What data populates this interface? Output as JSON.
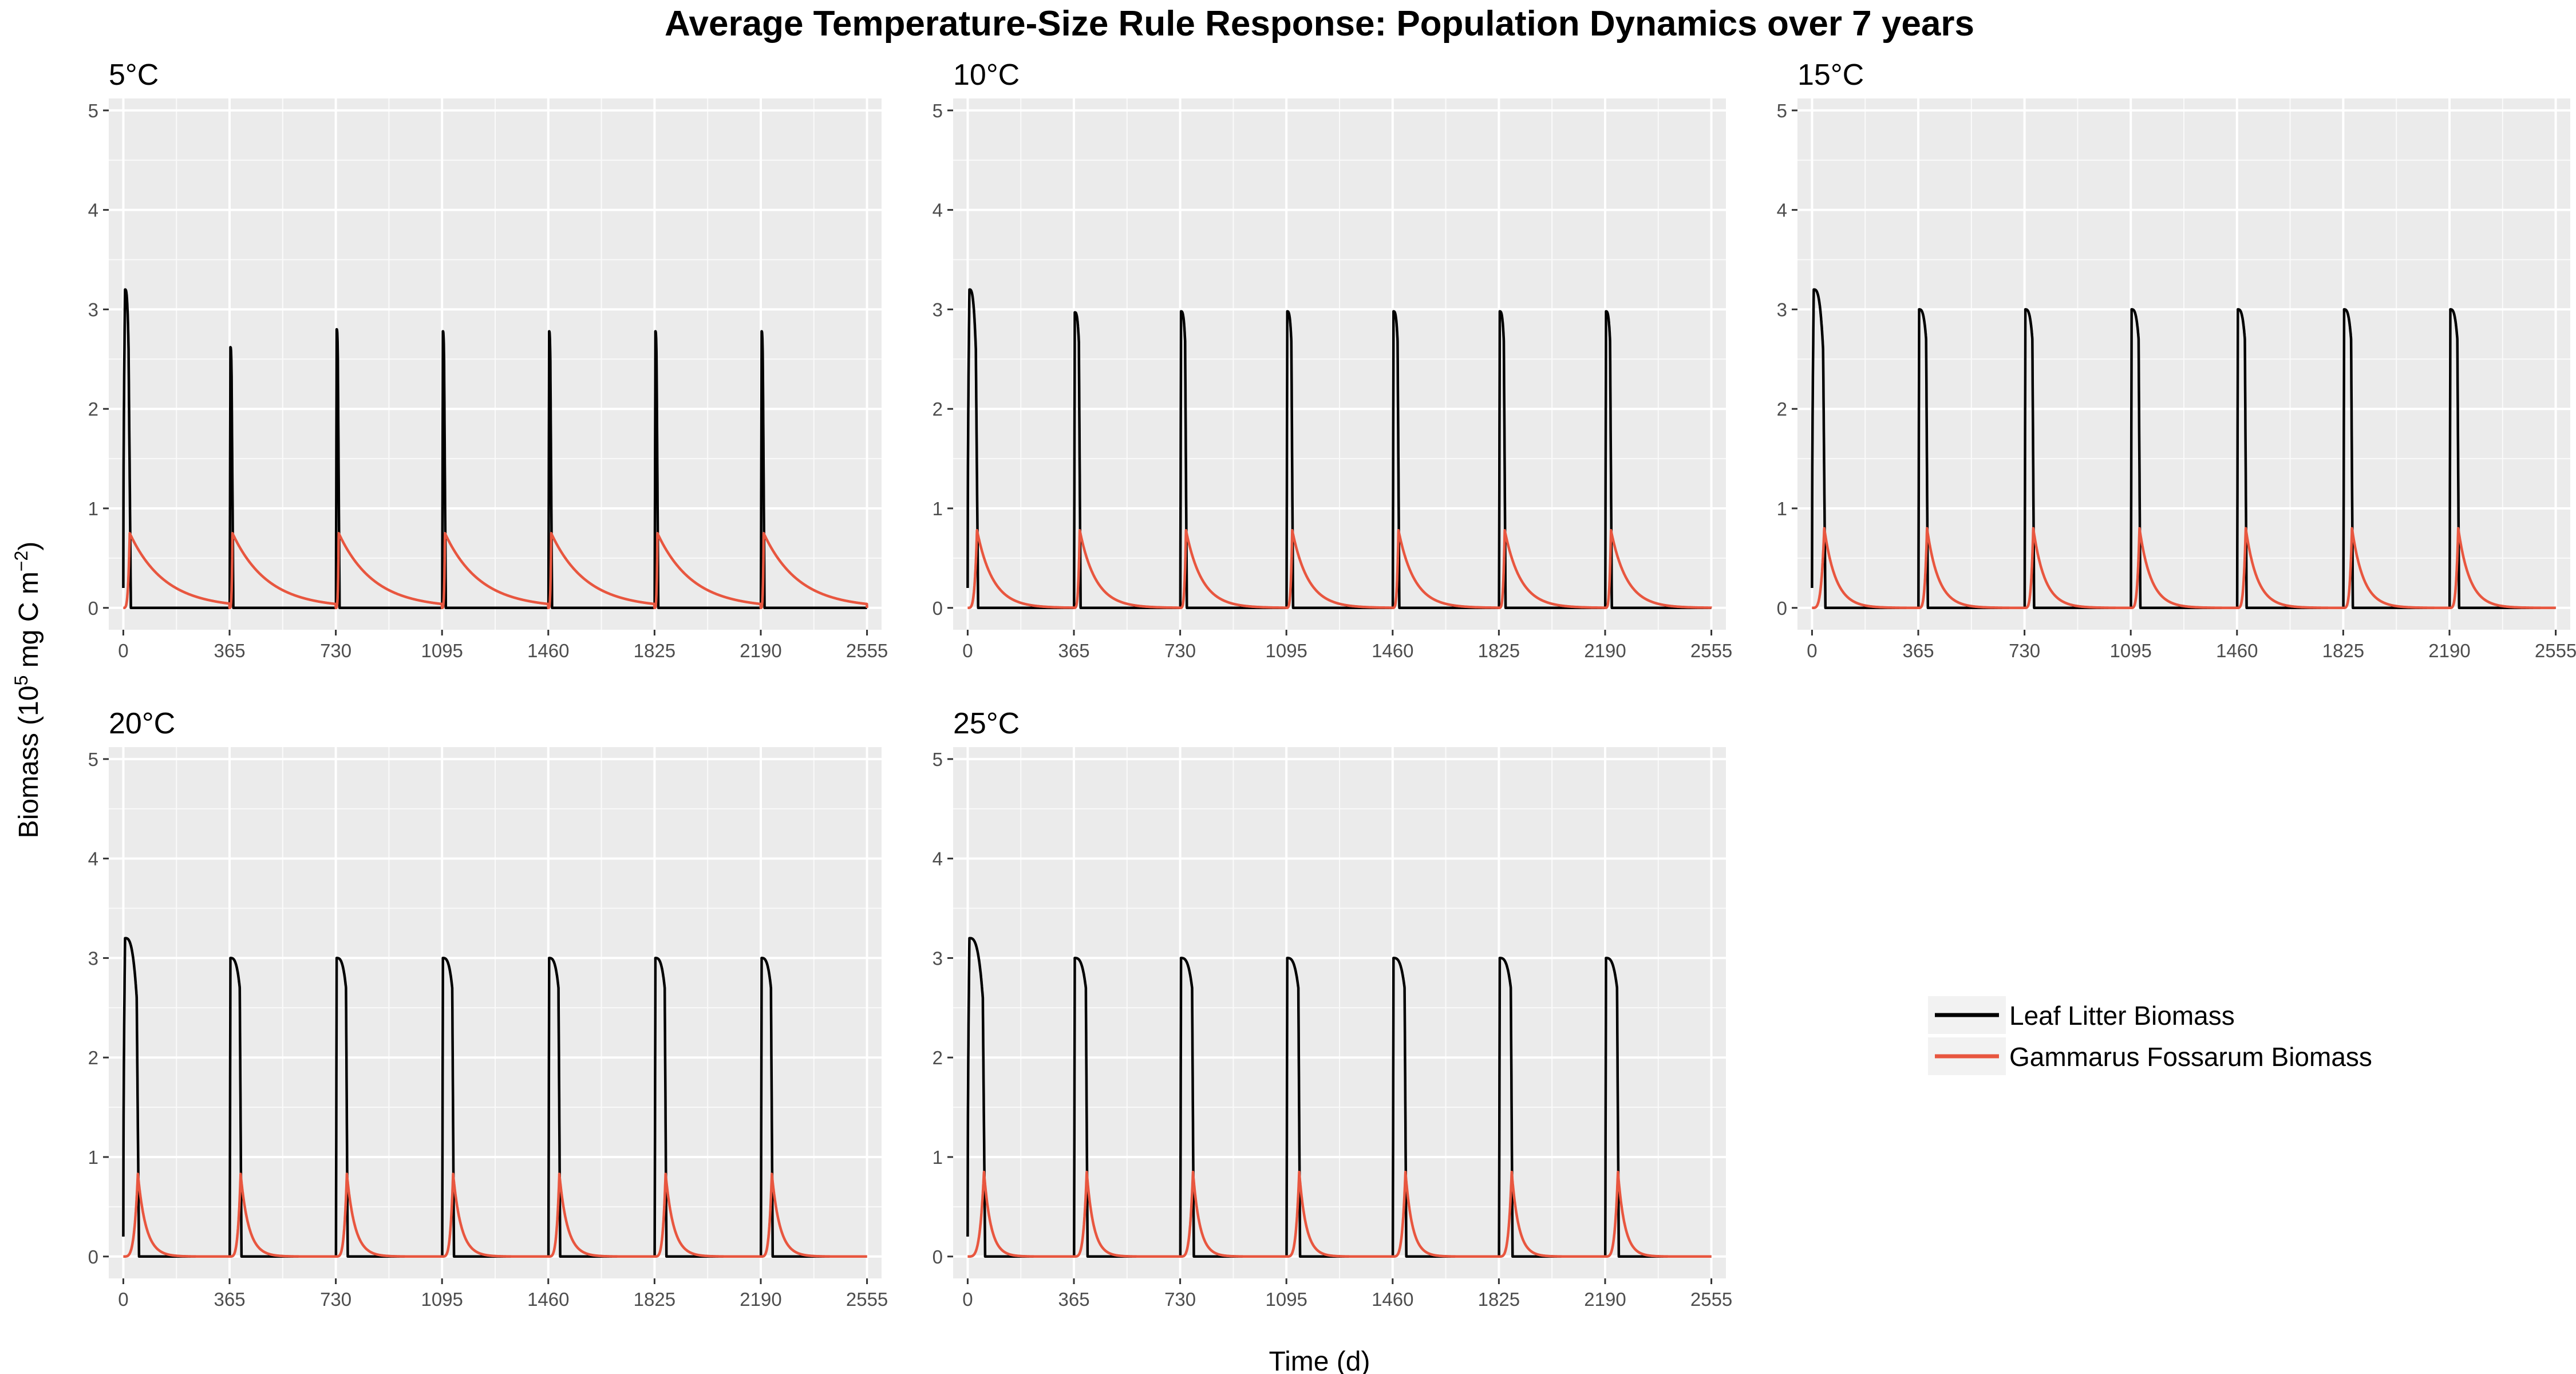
{
  "chart_data": {
    "type": "line",
    "title": "Average Temperature-Size Rule Response: Population Dynamics over 7 years",
    "xlabel": "Time (d)",
    "ylabel": {
      "main": "Biomass (10",
      "exp1": "5",
      "mid": " mg C m",
      "exp2": "−2",
      "end": ")"
    },
    "xlim": [
      -50,
      2605
    ],
    "ylim": [
      -0.22,
      5.12
    ],
    "x_ticks": [
      0,
      365,
      730,
      1095,
      1460,
      1825,
      2190,
      2555
    ],
    "x_tick_labels": [
      "0",
      "365",
      "730",
      "1095",
      "1460",
      "1825",
      "2190",
      "2555"
    ],
    "y_ticks": [
      0,
      1,
      2,
      3,
      4,
      5
    ],
    "y_tick_labels": [
      "0",
      "1",
      "2",
      "3",
      "4",
      "5"
    ],
    "grid": true,
    "legend_placement": "right",
    "legend": [
      {
        "label": "Leaf Litter Biomass",
        "color": "#000000"
      },
      {
        "label": "Gammarus Fossarum Biomass",
        "color": "#e8563f"
      }
    ],
    "colors": {
      "leaf": "#000000",
      "gammarus": "#e8563f",
      "panel_bg": "#ebebeb",
      "grid": "#ffffff"
    },
    "panels": [
      {
        "label": "5°C",
        "leaf_first_peak": 3.2,
        "leaf_peaks": [
          2.62,
          2.8,
          2.78,
          2.78,
          2.78,
          2.78
        ],
        "leaf_width_d": 4,
        "gammarus_peak": 0.75,
        "gammarus_decay_d": 120
      },
      {
        "label": "10°C",
        "leaf_first_peak": 3.2,
        "leaf_peaks": [
          2.97,
          2.98,
          2.98,
          2.98,
          2.98,
          2.98
        ],
        "leaf_width_d": 14,
        "gammarus_peak": 0.78,
        "gammarus_decay_d": 55
      },
      {
        "label": "15°C",
        "leaf_first_peak": 3.2,
        "leaf_peaks": [
          3.0,
          3.0,
          3.0,
          3.0,
          3.0,
          3.0
        ],
        "leaf_width_d": 24,
        "gammarus_peak": 0.8,
        "gammarus_decay_d": 40
      },
      {
        "label": "20°C",
        "leaf_first_peak": 3.2,
        "leaf_peaks": [
          3.0,
          3.0,
          3.0,
          3.0,
          3.0,
          3.0
        ],
        "leaf_width_d": 32,
        "gammarus_peak": 0.83,
        "gammarus_decay_d": 28
      },
      {
        "label": "25°C",
        "leaf_first_peak": 3.2,
        "leaf_peaks": [
          3.0,
          3.0,
          3.0,
          3.0,
          3.0,
          3.0
        ],
        "leaf_width_d": 38,
        "gammarus_peak": 0.85,
        "gammarus_decay_d": 24
      }
    ]
  }
}
